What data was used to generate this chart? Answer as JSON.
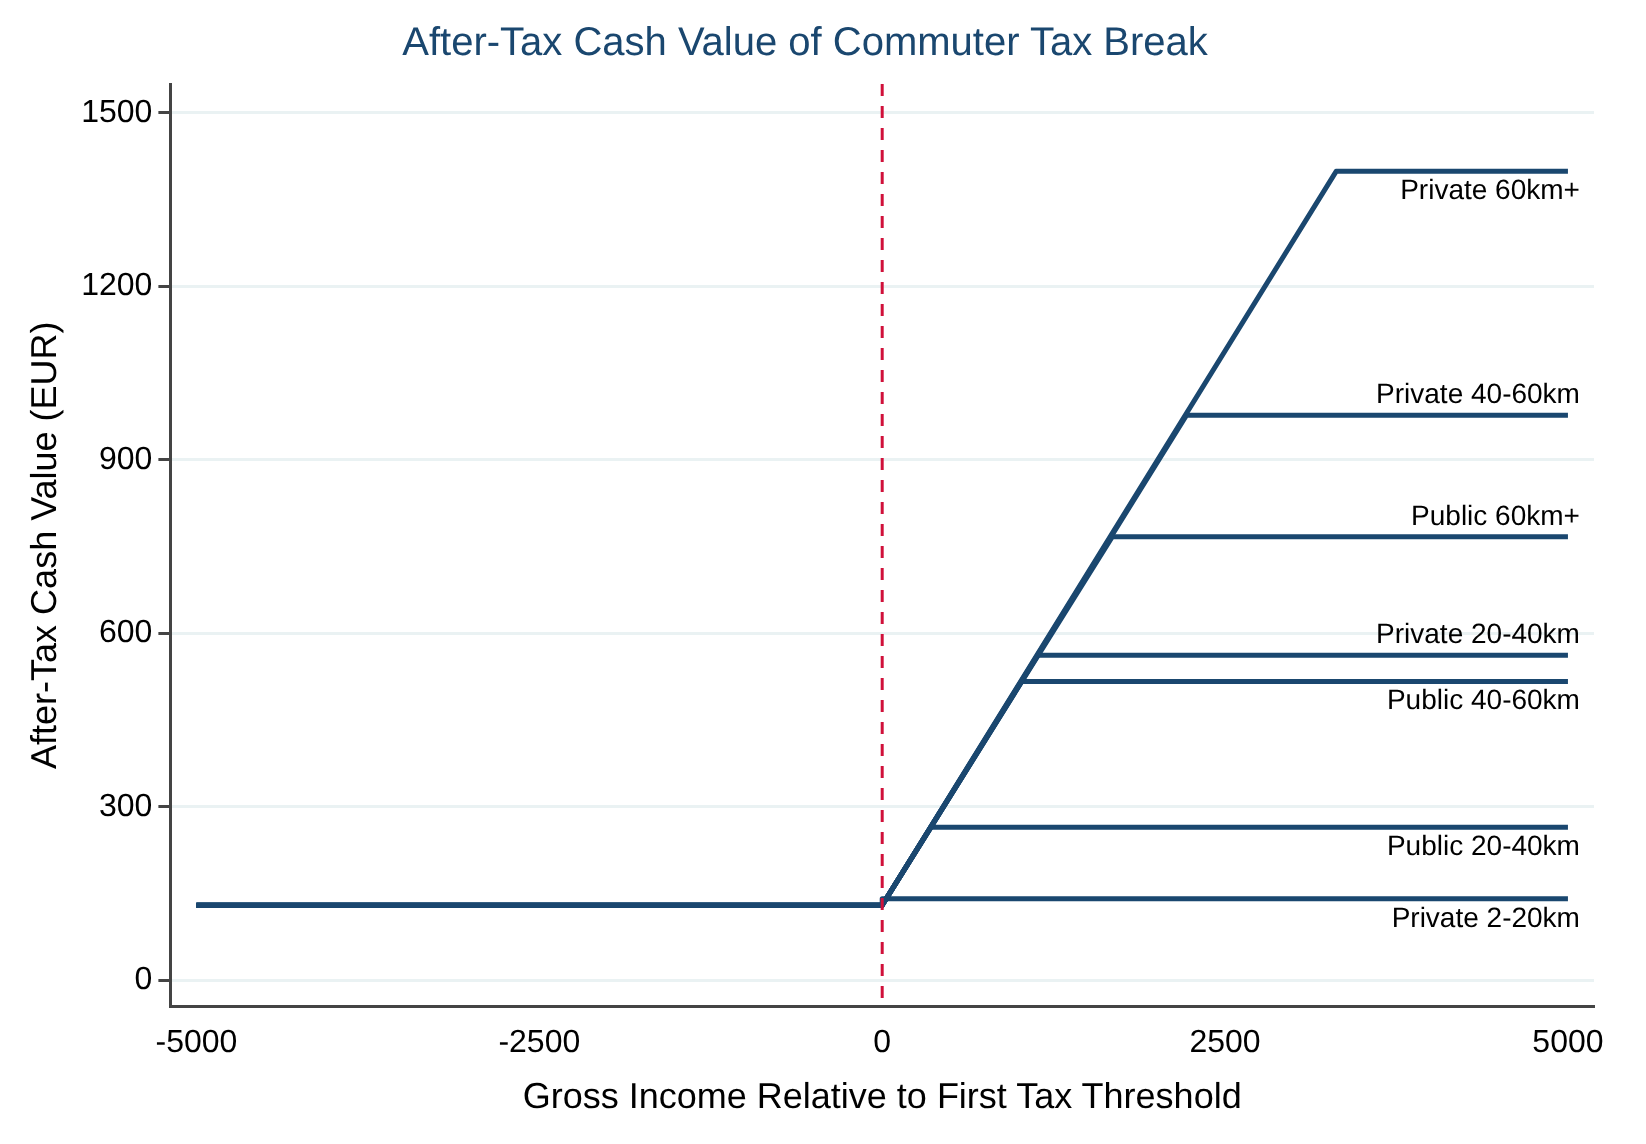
{
  "chart_data": {
    "type": "line",
    "title": "After-Tax Cash Value of Commuter Tax Break",
    "xlabel": "Gross Income Relative to First Tax Threshold",
    "ylabel": "After-Tax Cash Value (EUR)",
    "xlim": [
      -5190,
      5190
    ],
    "xticks": [
      -5000,
      -2500,
      0,
      2500,
      5000
    ],
    "ylim": [
      -45,
      1550
    ],
    "yticks": [
      0,
      300,
      600,
      900,
      1200,
      1500
    ],
    "grid": "y",
    "legend": false,
    "marker": "none",
    "line_style": "solid",
    "ref_lines": [
      {
        "axis": "x",
        "value": 0,
        "color": "#d0103a",
        "line_style": "dashed"
      }
    ],
    "series": [
      {
        "name": "Private 60km+",
        "color": "#1a476f",
        "x": [
          -5000,
          0,
          3310,
          5000
        ],
        "values": [
          130,
          130,
          1399,
          1399
        ]
      },
      {
        "name": "Private 40-60km",
        "color": "#1a476f",
        "x": [
          -5000,
          0,
          2218,
          5000
        ],
        "values": [
          130,
          130,
          977,
          977
        ]
      },
      {
        "name": "Public 60km+",
        "color": "#1a476f",
        "x": [
          -5000,
          0,
          1677,
          5000
        ],
        "values": [
          130,
          130,
          767,
          767
        ]
      },
      {
        "name": "Private 20-40km",
        "color": "#1a476f",
        "x": [
          -5000,
          0,
          1134,
          5000
        ],
        "values": [
          130,
          130,
          562,
          562
        ]
      },
      {
        "name": "Public 40-60km",
        "color": "#1a476f",
        "x": [
          -5000,
          0,
          1017,
          5000
        ],
        "values": [
          130,
          130,
          517,
          517
        ]
      },
      {
        "name": "Public 20-40km",
        "color": "#1a476f",
        "x": [
          -5000,
          0,
          357,
          5000
        ],
        "values": [
          130,
          130,
          265,
          265
        ]
      },
      {
        "name": "Private 2-20km",
        "color": "#1a476f",
        "x": [
          -5000,
          0,
          0,
          5000
        ],
        "values": [
          130,
          130,
          141,
          141
        ]
      }
    ]
  }
}
